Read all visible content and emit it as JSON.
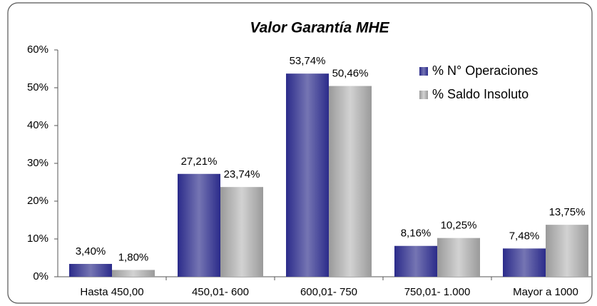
{
  "chart_data": {
    "type": "bar",
    "title": "Valor Garantía MHE",
    "categories": [
      "Hasta 450,00",
      "450,01- 600",
      "600,01- 750",
      "750,01- 1.000",
      "Mayor a 1000"
    ],
    "series": [
      {
        "name": "% N° Operaciones",
        "color": "#2b2b8a",
        "values": [
          3.4,
          27.21,
          53.74,
          8.16,
          7.48
        ],
        "value_labels": [
          "3,40%",
          "27,21%",
          "53,74%",
          "8,16%",
          "7,48%"
        ]
      },
      {
        "name": "% Saldo Insoluto",
        "color": "#9a9a9a",
        "values": [
          1.8,
          23.74,
          50.46,
          10.25,
          13.75
        ],
        "value_labels": [
          "1,80%",
          "23,74%",
          "50,46%",
          "10,25%",
          "13,75%"
        ]
      }
    ],
    "ylim": [
      0,
      60
    ],
    "yticks": [
      {
        "value": 0,
        "label": "0%"
      },
      {
        "value": 10,
        "label": "10%"
      },
      {
        "value": 20,
        "label": "20%"
      },
      {
        "value": 30,
        "label": "30%"
      },
      {
        "value": 40,
        "label": "40%"
      },
      {
        "value": 50,
        "label": "50%"
      },
      {
        "value": 60,
        "label": "60%"
      }
    ],
    "legend": "top-right"
  }
}
